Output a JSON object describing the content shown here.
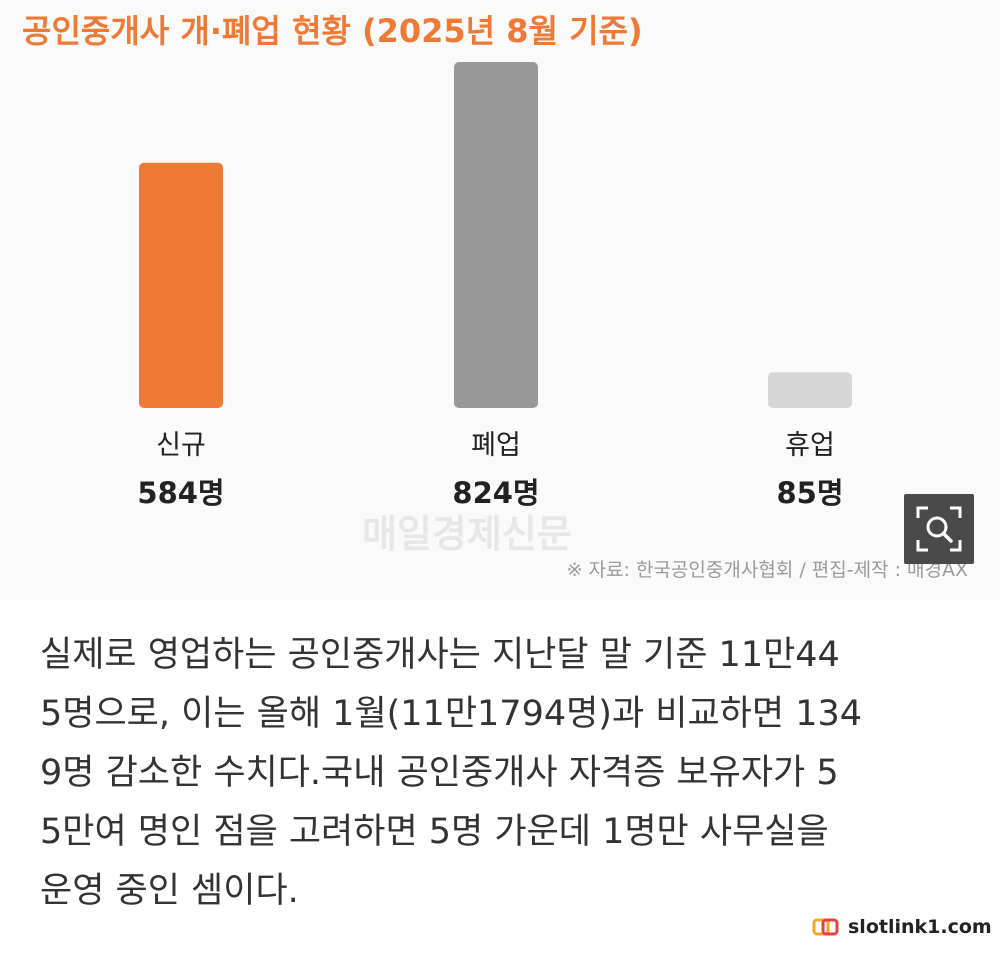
{
  "chart_data": {
    "type": "bar",
    "title": "공인중개사 개·폐업 현황 (2025년 8월 기준)",
    "categories": [
      "신규",
      "폐업",
      "휴업"
    ],
    "values": [
      584,
      824,
      85
    ],
    "value_labels": [
      "584명",
      "824명",
      "85명"
    ],
    "colors": [
      "#ee7a35",
      "#999999",
      "#d6d6d6"
    ],
    "title_color": "#ee7a35",
    "ylim": [
      0,
      824
    ],
    "grid": false,
    "legend": "none"
  },
  "watermark": "매일경제신문",
  "source": "※ 자료: 한국공인중개사협회 / 편집-제작 : 매경AX",
  "zoom_icon": "magnify-expand-icon",
  "article_lines": [
    "실제로 영업하는 공인중개사는 지난달 말 기준 11만44",
    "5명으로, 이는 올해 1월(11만1794명)과 비교하면 134",
    "9명 감소한 수치다.국내 공인중개사 자격증 보유자가 5",
    "5만여 명인 점을 고려하면 5명 가운데 1명만 사무실을",
    "운영 중인 셈이다."
  ],
  "site_badge": {
    "icon": "link-icon",
    "text": "slotlink1.com",
    "icon_colors": [
      "#f5a623",
      "#e8413c"
    ]
  }
}
